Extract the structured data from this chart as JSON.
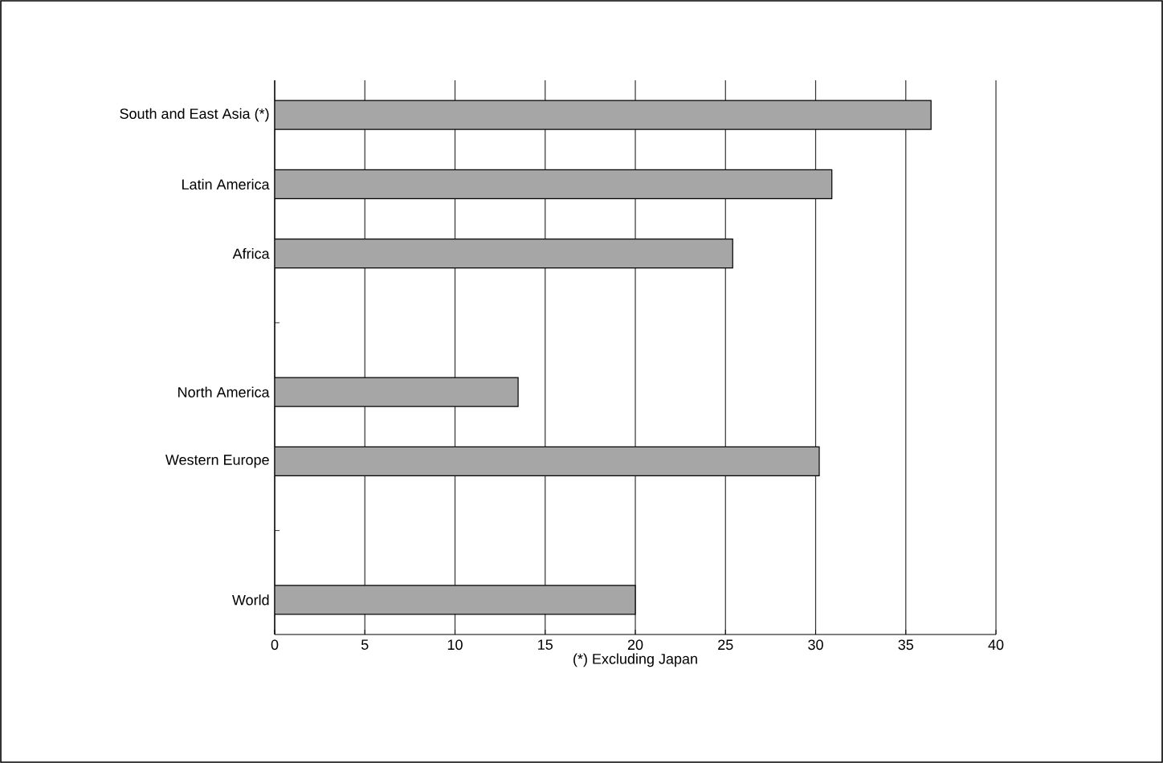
{
  "chart_data": {
    "type": "bar",
    "orientation": "horizontal",
    "categories": [
      "South and East Asia (*)",
      "Latin America",
      "Africa",
      null,
      "North America",
      "Western Europe",
      null,
      "World"
    ],
    "values": [
      36.4,
      30.9,
      25.4,
      null,
      13.5,
      30.2,
      null,
      20.0
    ],
    "color": "#a6a6a6",
    "xlim": [
      0,
      40
    ],
    "xticks": [
      0,
      5,
      10,
      15,
      20,
      25,
      30,
      35,
      40
    ],
    "xlabel": "(*) Excluding Japan",
    "grid": "x"
  }
}
